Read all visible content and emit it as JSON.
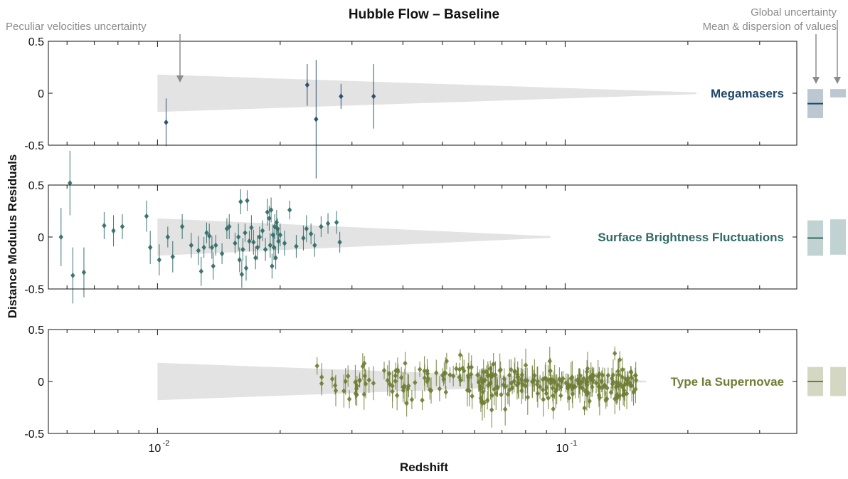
{
  "chart_data": {
    "type": "scatter",
    "title": "Hubble Flow – Baseline",
    "xlabel": "Redshift",
    "ylabel": "Distance Modulus Residuals",
    "xscale": "log",
    "xlim": [
      0.0054,
      0.37
    ],
    "ylim": [
      -0.5,
      0.5
    ],
    "x_tick_labels": [
      {
        "value": 0.01,
        "base": "10",
        "exp": "-2"
      },
      {
        "value": 0.1,
        "base": "10",
        "exp": "-1"
      }
    ],
    "y_tick_labels": [
      "0.5",
      "0",
      "-0.5"
    ],
    "grid": false,
    "annotations": {
      "peculiar": "Peculiar velocities uncertainty",
      "global": "Global uncertainty",
      "mean": "Mean & dispersion of values"
    },
    "colors": {
      "megamasers": "#1e4668",
      "sbf": "#2f6a66",
      "sn": "#6f7d34",
      "band": "#e3e3e3",
      "arrow": "#8c8c8c"
    },
    "series": [
      {
        "name": "Megamasers",
        "color_key": "megamasers",
        "points": [
          {
            "z": 0.0105,
            "mu": -0.28,
            "err": 0.23
          },
          {
            "z": 0.0233,
            "mu": 0.08,
            "err": 0.2
          },
          {
            "z": 0.0245,
            "mu": -0.25,
            "err": 0.57
          },
          {
            "z": 0.0282,
            "mu": -0.03,
            "err": 0.12
          },
          {
            "z": 0.0339,
            "mu": -0.03,
            "err": 0.31
          }
        ],
        "band": {
          "z_start": 0.01,
          "z_end": 0.21,
          "half_width_start": 0.18
        },
        "mean": -0.1,
        "dispersion": 0.14,
        "global_uncertainty": 0.04
      },
      {
        "name": "Surface Brightness Fluctuations",
        "color_key": "sbf",
        "points": [
          {
            "z": 0.0058,
            "mu": 0.0,
            "err": 0.28
          },
          {
            "z": 0.0061,
            "mu": 0.52,
            "err": 0.31
          },
          {
            "z": 0.0062,
            "mu": -0.37,
            "err": 0.27
          },
          {
            "z": 0.0066,
            "mu": -0.34,
            "err": 0.24
          },
          {
            "z": 0.0074,
            "mu": 0.11,
            "err": 0.13
          },
          {
            "z": 0.0078,
            "mu": 0.06,
            "err": 0.15
          },
          {
            "z": 0.0082,
            "mu": 0.1,
            "err": 0.12
          },
          {
            "z": 0.0094,
            "mu": 0.2,
            "err": 0.15
          },
          {
            "z": 0.0096,
            "mu": -0.1,
            "err": 0.16
          },
          {
            "z": 0.0101,
            "mu": -0.22,
            "err": 0.15
          },
          {
            "z": 0.0106,
            "mu": 0.0,
            "err": 0.1
          },
          {
            "z": 0.0109,
            "mu": -0.19,
            "err": 0.15
          },
          {
            "z": 0.0115,
            "mu": 0.1,
            "err": 0.12
          },
          {
            "z": 0.0121,
            "mu": -0.08,
            "err": 0.12
          },
          {
            "z": 0.0126,
            "mu": -0.13,
            "err": 0.14
          },
          {
            "z": 0.0128,
            "mu": -0.33,
            "err": 0.14
          },
          {
            "z": 0.013,
            "mu": -0.1,
            "err": 0.1
          },
          {
            "z": 0.0132,
            "mu": 0.04,
            "err": 0.1
          },
          {
            "z": 0.0134,
            "mu": 0.01,
            "err": 0.12
          },
          {
            "z": 0.0136,
            "mu": -0.1,
            "err": 0.11
          },
          {
            "z": 0.0137,
            "mu": -0.28,
            "err": 0.13
          },
          {
            "z": 0.0139,
            "mu": -0.08,
            "err": 0.1
          },
          {
            "z": 0.0144,
            "mu": -0.16,
            "err": 0.1
          },
          {
            "z": 0.0148,
            "mu": 0.08,
            "err": 0.1
          },
          {
            "z": 0.015,
            "mu": 0.1,
            "err": 0.12
          },
          {
            "z": 0.0155,
            "mu": -0.06,
            "err": 0.1
          },
          {
            "z": 0.0158,
            "mu": 0.0,
            "err": 0.13
          },
          {
            "z": 0.0159,
            "mu": -0.22,
            "err": 0.12
          },
          {
            "z": 0.016,
            "mu": 0.34,
            "err": 0.12
          },
          {
            "z": 0.0161,
            "mu": -0.36,
            "err": 0.13
          },
          {
            "z": 0.0162,
            "mu": -0.12,
            "err": 0.11
          },
          {
            "z": 0.0164,
            "mu": 0.04,
            "err": 0.09
          },
          {
            "z": 0.0165,
            "mu": -0.3,
            "err": 0.12
          },
          {
            "z": 0.0166,
            "mu": 0.35,
            "err": 0.1
          },
          {
            "z": 0.0168,
            "mu": -0.04,
            "err": 0.1
          },
          {
            "z": 0.017,
            "mu": 0.09,
            "err": 0.12
          },
          {
            "z": 0.0172,
            "mu": -0.05,
            "err": 0.12
          },
          {
            "z": 0.0174,
            "mu": -0.2,
            "err": 0.11
          },
          {
            "z": 0.0176,
            "mu": -0.1,
            "err": 0.12
          },
          {
            "z": 0.0178,
            "mu": 0.0,
            "err": 0.1
          },
          {
            "z": 0.0181,
            "mu": 0.06,
            "err": 0.1
          },
          {
            "z": 0.0184,
            "mu": -0.12,
            "err": 0.11
          },
          {
            "z": 0.0186,
            "mu": 0.24,
            "err": 0.13
          },
          {
            "z": 0.0188,
            "mu": 0.18,
            "err": 0.12
          },
          {
            "z": 0.0189,
            "mu": -0.08,
            "err": 0.12
          },
          {
            "z": 0.019,
            "mu": 0.26,
            "err": 0.12
          },
          {
            "z": 0.0191,
            "mu": -0.28,
            "err": 0.12
          },
          {
            "z": 0.0192,
            "mu": 0.02,
            "err": 0.1
          },
          {
            "z": 0.0193,
            "mu": -0.1,
            "err": 0.12
          },
          {
            "z": 0.0194,
            "mu": 0.1,
            "err": 0.12
          },
          {
            "z": 0.0195,
            "mu": -0.2,
            "err": 0.11
          },
          {
            "z": 0.0196,
            "mu": 0.14,
            "err": 0.12
          },
          {
            "z": 0.0197,
            "mu": 0.08,
            "err": 0.1
          },
          {
            "z": 0.0198,
            "mu": -0.04,
            "err": 0.12
          },
          {
            "z": 0.02,
            "mu": 0.02,
            "err": 0.11
          },
          {
            "z": 0.0205,
            "mu": -0.06,
            "err": 0.12
          },
          {
            "z": 0.0211,
            "mu": 0.26,
            "err": 0.09
          },
          {
            "z": 0.0219,
            "mu": -0.09,
            "err": 0.11
          },
          {
            "z": 0.0228,
            "mu": -0.01,
            "err": 0.12
          },
          {
            "z": 0.0232,
            "mu": 0.08,
            "err": 0.13
          },
          {
            "z": 0.0238,
            "mu": 0.03,
            "err": 0.1
          },
          {
            "z": 0.0243,
            "mu": -0.08,
            "err": 0.11
          },
          {
            "z": 0.0252,
            "mu": 0.1,
            "err": 0.1
          },
          {
            "z": 0.0262,
            "mu": 0.13,
            "err": 0.1
          },
          {
            "z": 0.0275,
            "mu": 0.14,
            "err": 0.11
          },
          {
            "z": 0.028,
            "mu": -0.05,
            "err": 0.1
          }
        ],
        "band": {
          "z_start": 0.01,
          "z_end": 0.092,
          "half_width_start": 0.18
        },
        "mean": -0.01,
        "dispersion": 0.17,
        "global_uncertainty": 0.17
      },
      {
        "name": "Type Ia Supernovae",
        "color_key": "sn",
        "generated_count": 280,
        "z_range": [
          0.023,
          0.15
        ],
        "seed": 7,
        "band": {
          "z_start": 0.01,
          "z_end": 0.158,
          "half_width_start": 0.18
        },
        "mean": 0.0,
        "dispersion": 0.14,
        "global_uncertainty": 0.14
      }
    ]
  }
}
